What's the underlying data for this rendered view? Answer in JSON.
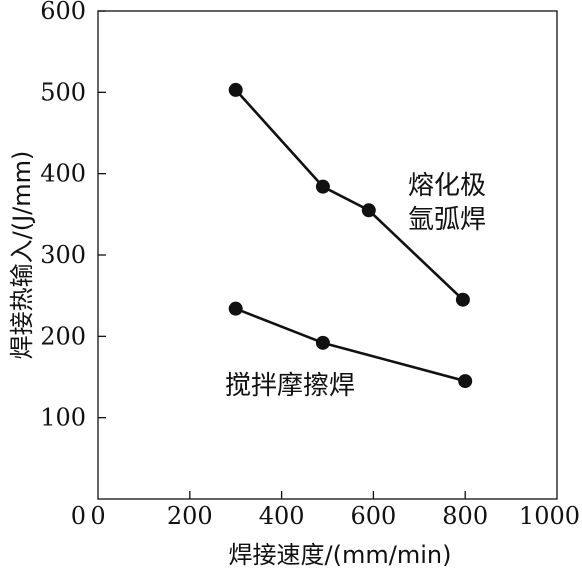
{
  "chart_data": {
    "type": "line",
    "xlabel": "焊接速度/(mm/min)",
    "ylabel": "焊接热输入/(J/mm)",
    "xlim": [
      0,
      1000
    ],
    "ylim": [
      0,
      600
    ],
    "xticks": [
      0,
      200,
      400,
      600,
      800,
      1000
    ],
    "yticks": [
      100,
      200,
      300,
      400,
      500,
      600
    ],
    "ytick_labels": [
      "100",
      "200",
      "300",
      "400",
      "500",
      "600"
    ],
    "xtick_labels": [
      "0",
      "200",
      "400",
      "600",
      "800",
      "1000"
    ],
    "y_origin_label": "0",
    "grid": false,
    "legend": "none",
    "series": [
      {
        "name_lines": [
          "熔化极",
          "氩弧焊"
        ],
        "x": [
          300,
          490,
          590,
          795
        ],
        "y": [
          503,
          384,
          355,
          245
        ]
      },
      {
        "name_lines": [
          "搅拌摩擦焊"
        ],
        "x": [
          300,
          490,
          800
        ],
        "y": [
          234,
          192,
          145
        ]
      }
    ]
  }
}
